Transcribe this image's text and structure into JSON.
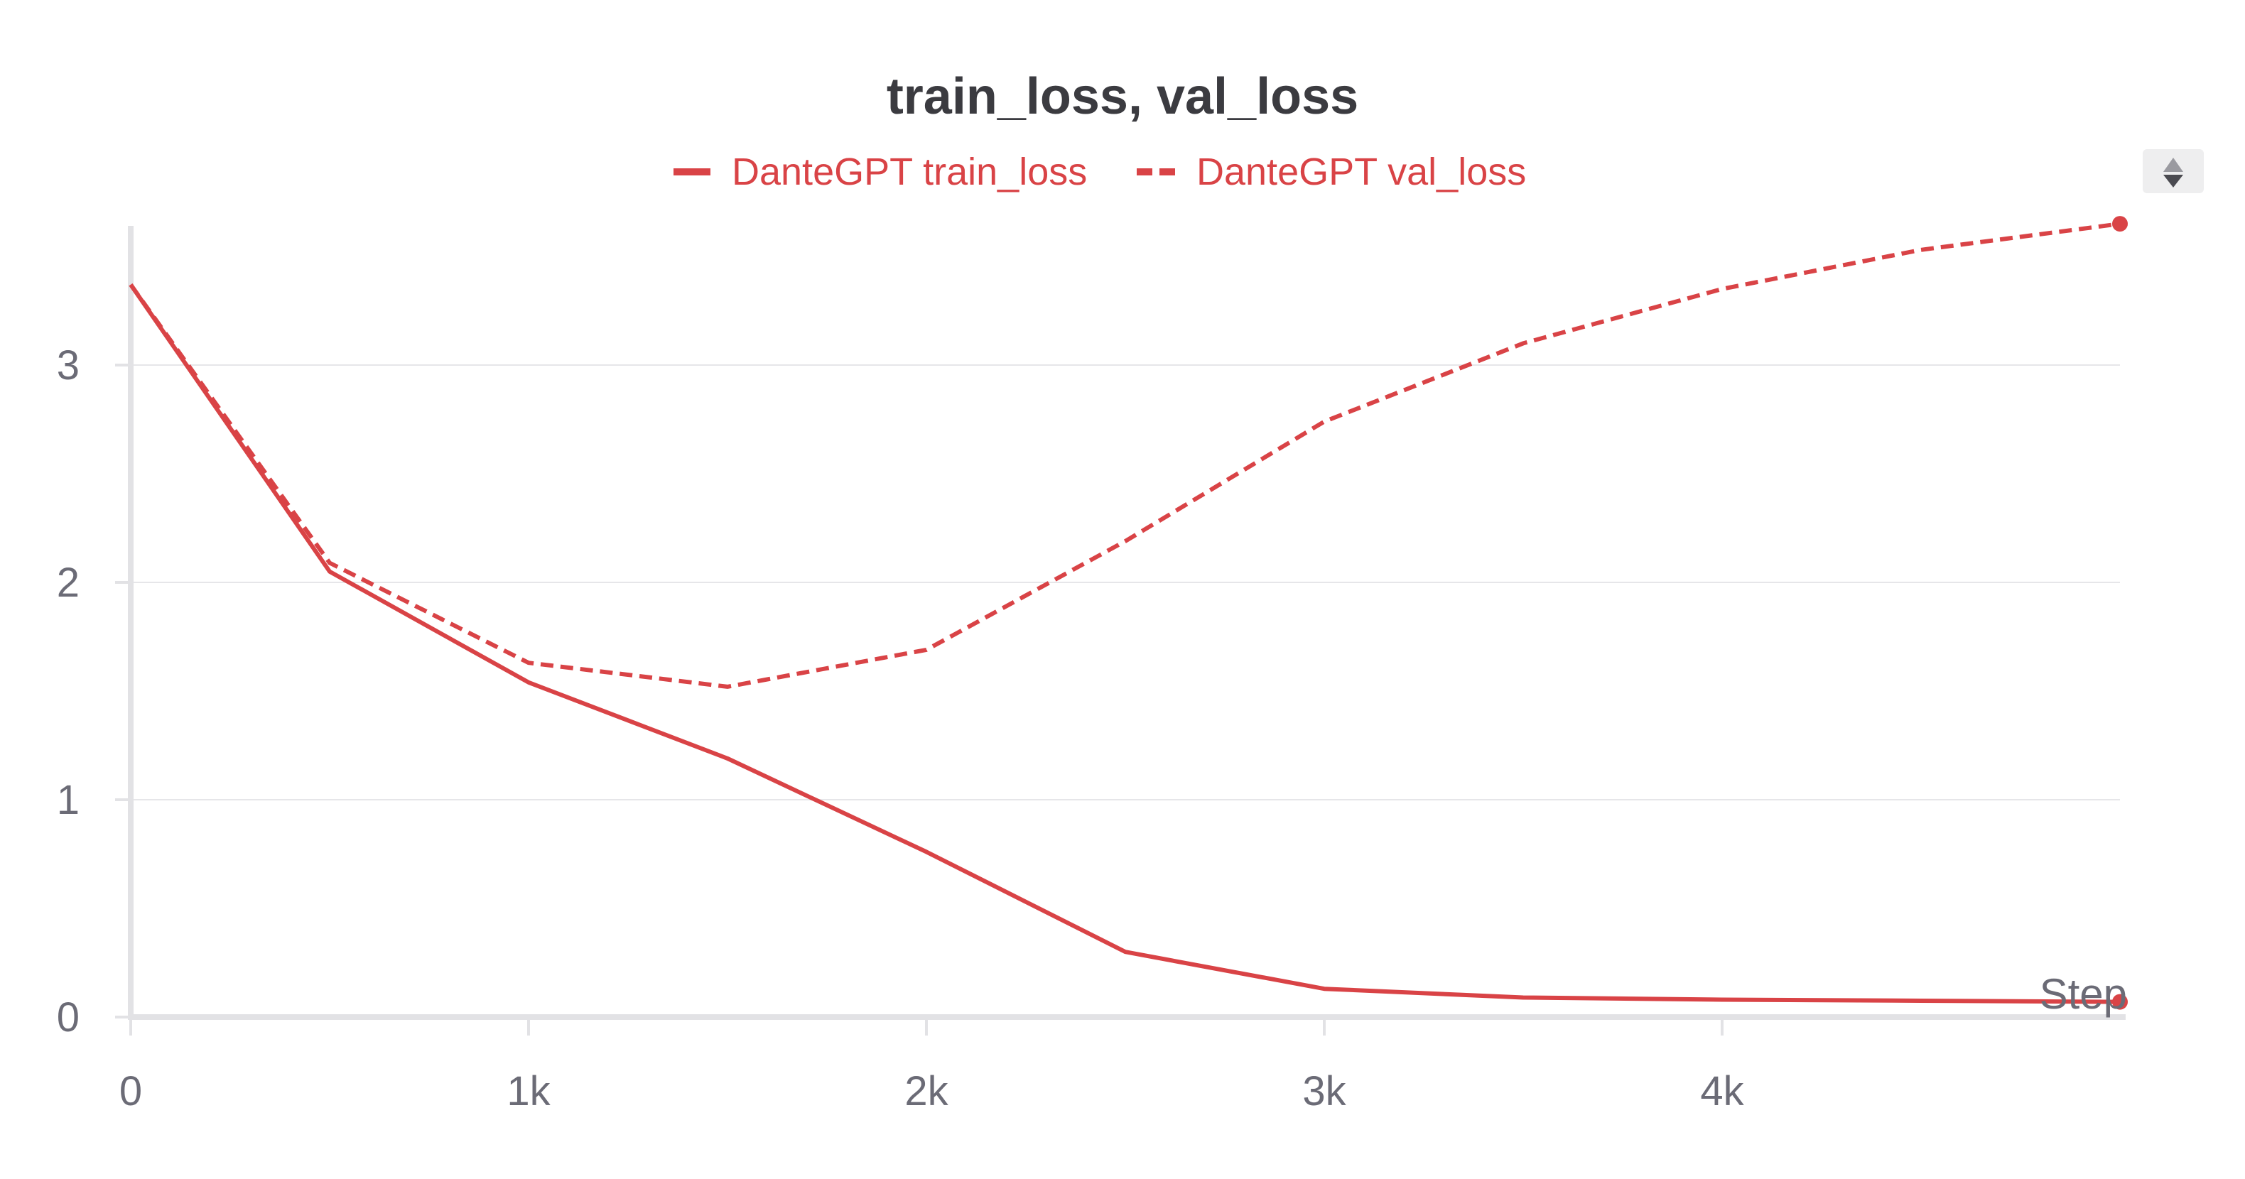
{
  "chart_data": {
    "type": "line",
    "title": "train_loss, val_loss",
    "xlabel": "Step",
    "ylabel": "",
    "x_tick_labels": [
      "0",
      "1k",
      "2k",
      "3k",
      "4k"
    ],
    "x_tick_values": [
      0,
      1000,
      2000,
      3000,
      4000
    ],
    "y_tick_labels": [
      "0",
      "1",
      "2",
      "3"
    ],
    "y_tick_values": [
      0,
      1,
      2,
      3
    ],
    "xlim": [
      0,
      5000
    ],
    "ylim": [
      0,
      3.65
    ],
    "grid": true,
    "legend_position": "top-center",
    "x": [
      0,
      500,
      1000,
      1500,
      2000,
      2500,
      3000,
      3500,
      4000,
      4500,
      5000
    ],
    "series": [
      {
        "name": "DanteGPT train_loss",
        "style": "solid",
        "color": "#d94346",
        "values": [
          3.37,
          2.05,
          1.54,
          1.19,
          0.76,
          0.3,
          0.13,
          0.09,
          0.08,
          0.075,
          0.07
        ]
      },
      {
        "name": "DanteGPT val_loss",
        "style": "dashed",
        "color": "#d94346",
        "values": [
          3.37,
          2.09,
          1.63,
          1.52,
          1.69,
          2.19,
          2.74,
          3.1,
          3.35,
          3.53,
          3.65
        ]
      }
    ]
  },
  "controls": {
    "legend_scroll_icon": "up-down-arrows-icon"
  }
}
